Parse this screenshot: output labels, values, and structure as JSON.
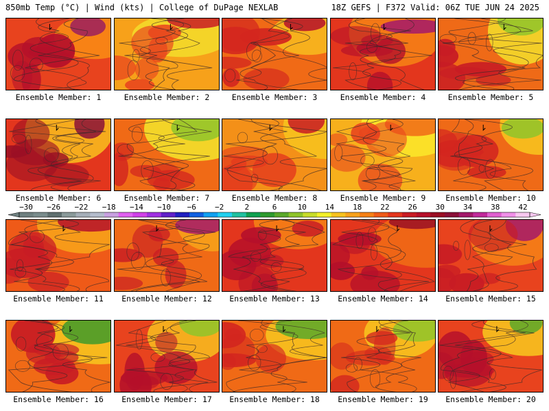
{
  "header": {
    "left": "850mb Temp (°C) | Wind (kts) | College of DuPage NEXLAB",
    "right": "18Z GEFS | F372 Valid: 06Z TUE JUN 24 2025"
  },
  "members": [
    {
      "label": "Ensemble Member: 1",
      "base": "#e8431e",
      "warm": "#b5102a",
      "cool": "#f98a14",
      "hot": "#9b1f5e"
    },
    {
      "label": "Ensemble Member: 2",
      "base": "#f7a11a",
      "warm": "#e8431e",
      "cool": "#f3d92a",
      "hot": "#c81c24"
    },
    {
      "label": "Ensemble Member: 3",
      "base": "#f06a16",
      "warm": "#d3261f",
      "cool": "#f7b81e",
      "hot": "#b5102a"
    },
    {
      "label": "Ensemble Member: 4",
      "base": "#e3361d",
      "warm": "#b5102a",
      "cool": "#f58016",
      "hot": "#a3196a"
    },
    {
      "label": "Ensemble Member: 5",
      "base": "#ef6a17",
      "warm": "#c81c24",
      "cool": "#f3d92a",
      "hot": "#8fc42a"
    },
    {
      "label": "Ensemble Member: 6",
      "base": "#e3361d",
      "warm": "#9a0f24",
      "cool": "#f7b81e",
      "hot": "#8a1038"
    },
    {
      "label": "Ensemble Member: 7",
      "base": "#f06a16",
      "warm": "#d3261f",
      "cool": "#f3e02a",
      "hot": "#8fc42a"
    },
    {
      "label": "Ensemble Member: 8",
      "base": "#f49018",
      "warm": "#e3361d",
      "cool": "#f7c21e",
      "hot": "#c81c24"
    },
    {
      "label": "Ensemble Member: 9",
      "base": "#f7b01c",
      "warm": "#e8431e",
      "cool": "#fbe52a",
      "hot": "#f06a16"
    },
    {
      "label": "Ensemble Member: 10",
      "base": "#ef6a17",
      "warm": "#d3261f",
      "cool": "#f7c21e",
      "hot": "#8fc42a"
    },
    {
      "label": "Ensemble Member: 11",
      "base": "#ef5a18",
      "warm": "#c81c24",
      "cool": "#f7a11a",
      "hot": "#b5102a"
    },
    {
      "label": "Ensemble Member: 12",
      "base": "#f06a16",
      "warm": "#c81c24",
      "cool": "#f7a11a",
      "hot": "#a3196a"
    },
    {
      "label": "Ensemble Member: 13",
      "base": "#e3361d",
      "warm": "#b5102a",
      "cool": "#f58016",
      "hot": "#c81c24"
    },
    {
      "label": "Ensemble Member: 14",
      "base": "#e3361d",
      "warm": "#b5102a",
      "cool": "#f06a16",
      "hot": "#9a0f24"
    },
    {
      "label": "Ensemble Member: 15",
      "base": "#e8431e",
      "warm": "#c81c24",
      "cool": "#f58016",
      "hot": "#a3196a"
    },
    {
      "label": "Ensemble Member: 16",
      "base": "#f06a16",
      "warm": "#c81c24",
      "cool": "#f7c21e",
      "hot": "#3f9a2a"
    },
    {
      "label": "Ensemble Member: 17",
      "base": "#e8431e",
      "warm": "#b5102a",
      "cool": "#f7b81e",
      "hot": "#8fc42a"
    },
    {
      "label": "Ensemble Member: 18",
      "base": "#f06a16",
      "warm": "#d3261f",
      "cool": "#f7c21e",
      "hot": "#5aa82a"
    },
    {
      "label": "Ensemble Member: 19",
      "base": "#f06a16",
      "warm": "#d3261f",
      "cool": "#f7c21e",
      "hot": "#8fc42a"
    },
    {
      "label": "Ensemble Member: 20",
      "base": "#e8431e",
      "warm": "#b5102a",
      "cool": "#f7c21e",
      "hot": "#5aa82a"
    }
  ],
  "colorbar": {
    "labels": [
      "-30",
      "-26",
      "-22",
      "-18",
      "-14",
      "-10",
      "-6",
      "-2",
      "2",
      "6",
      "10",
      "14",
      "18",
      "22",
      "26",
      "30",
      "34",
      "38",
      "42"
    ],
    "colors": [
      "#6f8080",
      "#7a8c8c",
      "#5f6f6f",
      "#8a9a9a",
      "#a5aeb8",
      "#b4bccc",
      "#c8a0e0",
      "#e060f0",
      "#d040e8",
      "#a030e0",
      "#6020c8",
      "#2020c0",
      "#1060e0",
      "#10a0f0",
      "#20d0f0",
      "#20c0a0",
      "#10a050",
      "#2e9a2e",
      "#5aa82a",
      "#8fc42a",
      "#c8dc2a",
      "#f3f02a",
      "#f7c21e",
      "#f7a11a",
      "#f58016",
      "#ef5a18",
      "#e3361d",
      "#c81c24",
      "#b5102a",
      "#9a0f24",
      "#8a1038",
      "#a3196a",
      "#c02a9a",
      "#e060d0",
      "#f090e8",
      "#f8c8f0"
    ]
  }
}
